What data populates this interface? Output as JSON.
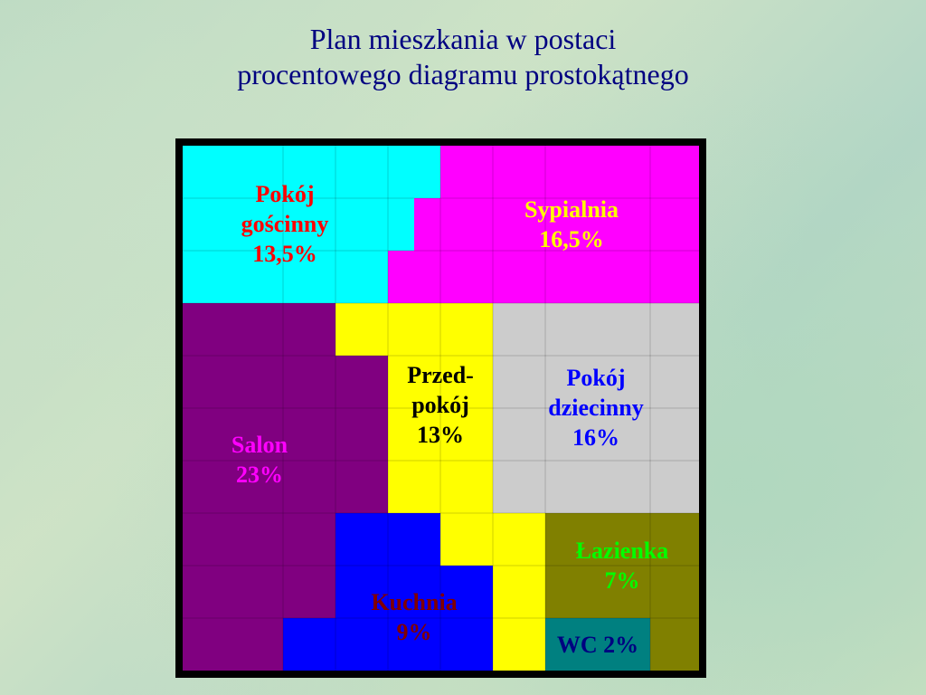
{
  "title": {
    "line1": "Plan mieszkania w postaci",
    "line2": "procentowego diagramu prostokątnego"
  },
  "colors": {
    "title": "#000080",
    "border": "#000000",
    "pokoj_goscinny": "#00FFFF",
    "sypialnia": "#FF00FF",
    "salon": "#800080",
    "przedpokoj": "#FFFF00",
    "pokoj_dziecinny": "#CCCCCC",
    "kuchnia": "#0000FF",
    "lazienka": "#808000",
    "wc": "#008080"
  },
  "rooms": {
    "pokoj_goscinny": {
      "line1": "Pokój",
      "line2": "gościnny",
      "percent": "13,5%",
      "color": "#FF0000"
    },
    "sypialnia": {
      "line1": "Sypialnia",
      "percent": "16,5%",
      "color": "#FFFF00"
    },
    "salon": {
      "line1": "Salon",
      "percent": "23%",
      "color": "#FF00FF"
    },
    "przedpokoj": {
      "line1": "Przed-",
      "line2": "pokój",
      "percent": "13%",
      "color": "#000000"
    },
    "pokoj_dziecinny": {
      "line1": "Pokój",
      "line2": "dziecinny",
      "percent": "16%",
      "color": "#0000FF"
    },
    "lazienka": {
      "line1": "Łazienka",
      "percent": "7%",
      "color": "#00FF00"
    },
    "kuchnia": {
      "line1": "Kuchnia",
      "percent": "9%",
      "color": "#800000"
    },
    "wc": {
      "line1": "WC 2%",
      "color": "#000080"
    }
  },
  "chart_data": {
    "type": "area",
    "categories": [
      "Pokój gościnny",
      "Sypialnia",
      "Salon",
      "Przedpokój",
      "Pokój dziecinny",
      "Łazienka",
      "Kuchnia",
      "WC"
    ],
    "values": [
      13.5,
      16.5,
      23,
      13,
      16,
      7,
      9,
      2
    ],
    "title": "Plan mieszkania w postaci procentowego diagramu prostokątnego"
  }
}
